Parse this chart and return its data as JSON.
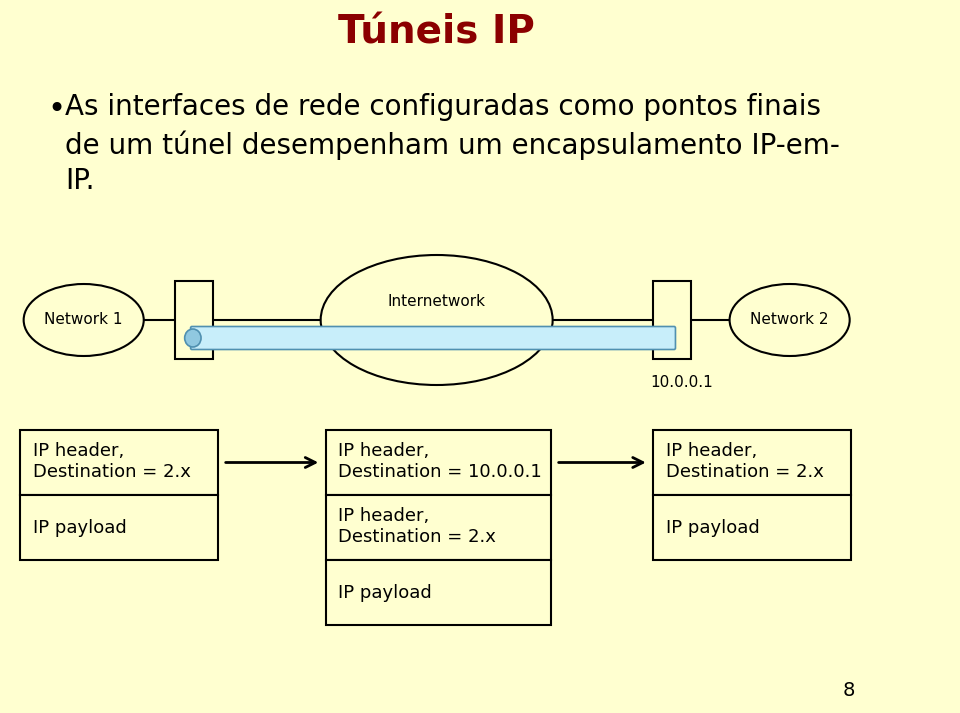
{
  "title": "Túneis IP",
  "title_color": "#8B0000",
  "title_fontsize": 28,
  "bg_color": "#FFFFD0",
  "bullet_text_line1": "As interfaces de rede configuradas como pontos finais",
  "bullet_text_line2": "de um túnel desempenham um encapsulamento IP-em-",
  "bullet_text_line3": "IP.",
  "bullet_fontsize": 20,
  "tunnel_label": "10.0.0.1",
  "page_number": "8"
}
